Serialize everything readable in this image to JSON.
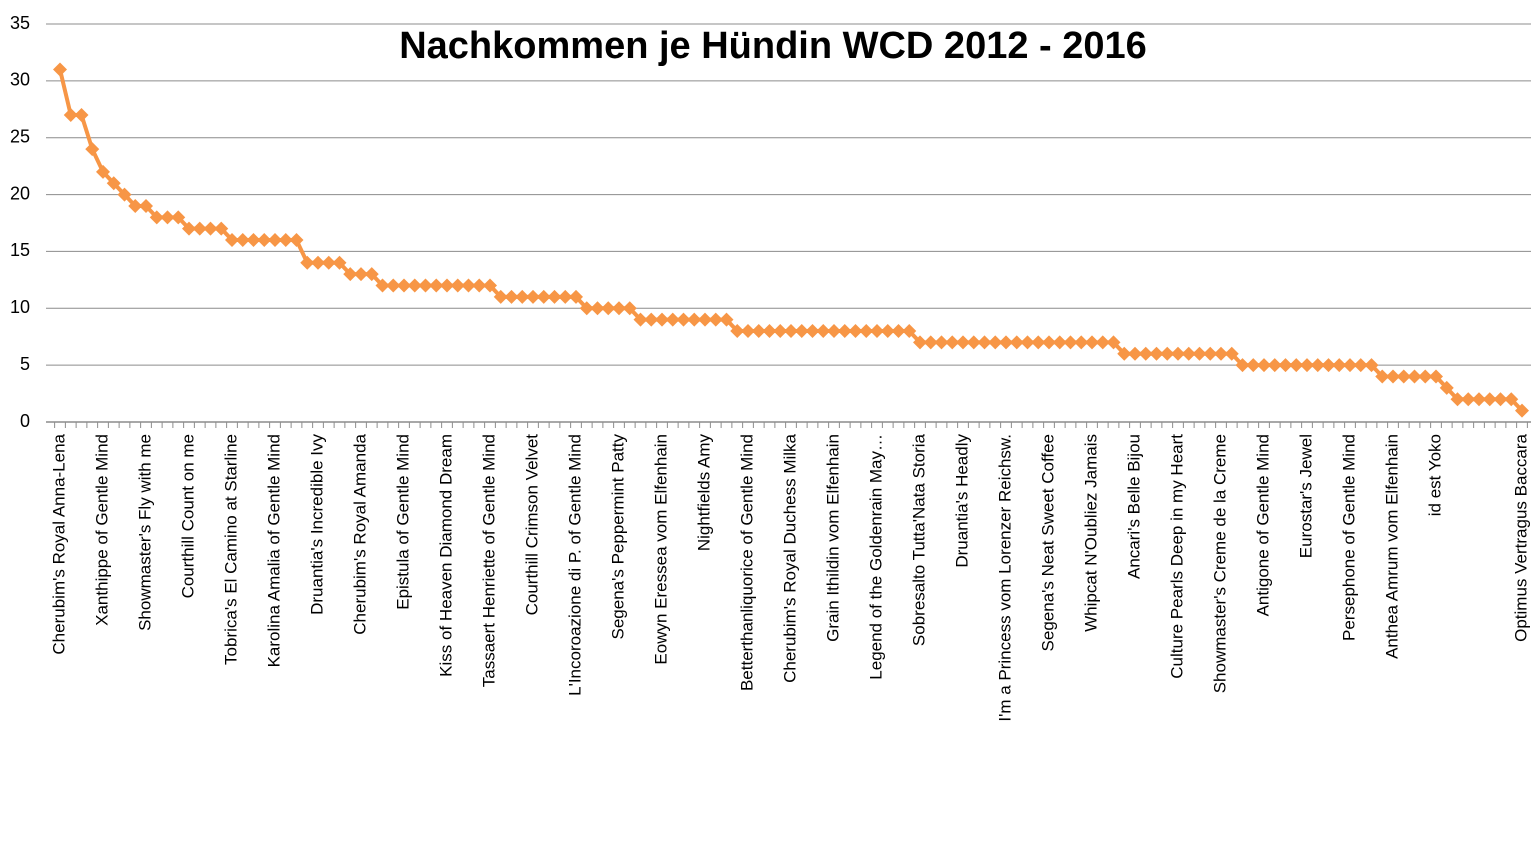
{
  "chart_data": {
    "type": "line",
    "title": "Nachkommen je Hündin WCD 2012 - 2016",
    "categories": [
      "Cherubim's Royal Anna-Lena",
      null,
      null,
      null,
      "Xanthippe of Gentle Mind",
      null,
      null,
      null,
      "Showmaster's Fly with me",
      null,
      null,
      null,
      "Courthill Count on me",
      null,
      null,
      null,
      "Tobrica's El Camino at Starline",
      null,
      null,
      null,
      "Karolina Amalia of Gentle Mind",
      null,
      null,
      null,
      "Druantia's Incredible Ivy",
      null,
      null,
      null,
      "Cherubim's Royal Amanda",
      null,
      null,
      null,
      "Epistula of Gentle Mind",
      null,
      null,
      null,
      "Kiss of Heaven Diamond Dream",
      null,
      null,
      null,
      "Tassaert Henriette of Gentle Mind",
      null,
      null,
      null,
      "Courthill Crimson Velvet",
      null,
      null,
      null,
      "L'Incoroazione di P. of Gentle Mind",
      null,
      null,
      null,
      "Segena's Peppermint Patty",
      null,
      null,
      null,
      "Eowyn Eressea vom Elfenhain",
      null,
      null,
      null,
      "Nightfields Amy",
      null,
      null,
      null,
      "Betterthanliquorice of Gentle Mind",
      null,
      null,
      null,
      "Cherubim's Royal Duchess Milka",
      null,
      null,
      null,
      "Grain Ithildin vom Elfenhain",
      null,
      null,
      null,
      "Legend of the Goldenrain May…",
      null,
      null,
      null,
      "Sobresalto Tutta'Nata Storia",
      null,
      null,
      null,
      "Druantia's Headly",
      null,
      null,
      null,
      "I'm a Princess vom Lorenzer Reichsw.",
      null,
      null,
      null,
      "Segena's Neat Sweet Coffee",
      null,
      null,
      null,
      "Whipcat N'Oubliez Jamais",
      null,
      null,
      null,
      "Ancari's Belle Bijou",
      null,
      null,
      null,
      "Culture Pearls Deep in my Heart",
      null,
      null,
      null,
      "Showmaster's Creme de la Creme",
      null,
      null,
      null,
      "Antigone of Gentle Mind",
      null,
      null,
      null,
      "Eurostar's Jewel",
      null,
      null,
      null,
      "Persephone of Gentle Mind",
      null,
      null,
      null,
      "Anthea Amrum vom Elfenhain",
      null,
      null,
      null,
      "id est Yoko",
      null,
      null,
      null,
      null,
      null,
      null,
      null,
      "Optimus Vertragus Baccara"
    ],
    "values": [
      31,
      27,
      27,
      24,
      22,
      21,
      20,
      19,
      19,
      18,
      18,
      18,
      17,
      17,
      17,
      17,
      16,
      16,
      16,
      16,
      16,
      16,
      16,
      14,
      14,
      14,
      14,
      13,
      13,
      13,
      12,
      12,
      12,
      12,
      12,
      12,
      12,
      12,
      12,
      12,
      12,
      11,
      11,
      11,
      11,
      11,
      11,
      11,
      11,
      10,
      10,
      10,
      10,
      10,
      9,
      9,
      9,
      9,
      9,
      9,
      9,
      9,
      9,
      8,
      8,
      8,
      8,
      8,
      8,
      8,
      8,
      8,
      8,
      8,
      8,
      8,
      8,
      8,
      8,
      8,
      7,
      7,
      7,
      7,
      7,
      7,
      7,
      7,
      7,
      7,
      7,
      7,
      7,
      7,
      7,
      7,
      7,
      7,
      7,
      6,
      6,
      6,
      6,
      6,
      6,
      6,
      6,
      6,
      6,
      6,
      5,
      5,
      5,
      5,
      5,
      5,
      5,
      5,
      5,
      5,
      5,
      5,
      5,
      4,
      4,
      4,
      4,
      4,
      4,
      3,
      2,
      2,
      2,
      2,
      2,
      2,
      1
    ],
    "color": "#f79646",
    "ylim": [
      0,
      35
    ],
    "yticks": [
      0,
      5,
      10,
      15,
      20,
      25,
      30,
      35
    ],
    "grid": true
  }
}
